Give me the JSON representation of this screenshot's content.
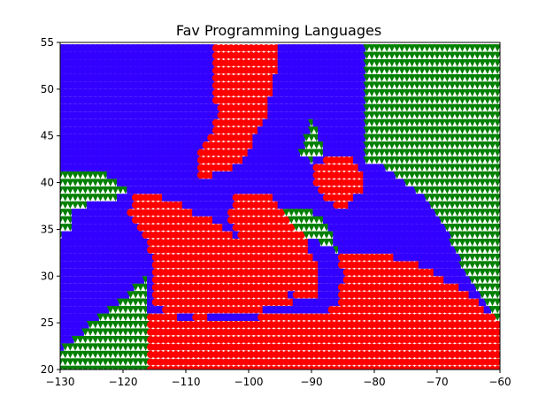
{
  "chart_data": {
    "type": "scatter",
    "title": "Fav Programming Languages",
    "xlabel": "",
    "ylabel": "",
    "xlim": [
      -130,
      -60
    ],
    "ylim": [
      20,
      55
    ],
    "xticks": [
      -130,
      -120,
      -110,
      -100,
      -90,
      -80,
      -70,
      -60
    ],
    "yticks": [
      20,
      25,
      30,
      35,
      40,
      45,
      50,
      55
    ],
    "grid": false,
    "legend": "none",
    "grid_step": {
      "x": 0.8,
      "y": 0.8
    },
    "colors": {
      "red": "#ff0000",
      "blue": "#3300ff",
      "green": "#008000"
    },
    "markers": {
      "red": "circle",
      "blue": "square",
      "green": "triangle-down"
    },
    "series": [
      {
        "color": "red",
        "regions": [
          {
            "comment": "northern central strip",
            "polygon": [
              [
                -105.5,
                55
              ],
              [
                -95,
                55
              ],
              [
                -95,
                53
              ],
              [
                -96,
                50
              ],
              [
                -97,
                47
              ],
              [
                -99,
                45
              ],
              [
                -100,
                43
              ],
              [
                -101,
                42
              ],
              [
                -103,
                41.5
              ],
              [
                -108,
                40
              ],
              [
                -108,
                43
              ],
              [
                -106,
                45
              ],
              [
                -105,
                47
              ],
              [
                -105.5,
                50
              ]
            ]
          },
          {
            "comment": "central western block",
            "polygon": [
              [
                -118,
                39
              ],
              [
                -114,
                38.5
              ],
              [
                -110,
                37.5
              ],
              [
                -108,
                36.5
              ],
              [
                -106,
                36
              ],
              [
                -104,
                35
              ],
              [
                -101,
                34
              ],
              [
                -98,
                33.5
              ],
              [
                -96,
                31
              ],
              [
                -94,
                28
              ],
              [
                -93,
                27
              ],
              [
                -100,
                26
              ],
              [
                -108,
                25.5
              ],
              [
                -113,
                26
              ],
              [
                -115,
                27
              ],
              [
                -115,
                31
              ],
              [
                -116,
                33
              ],
              [
                -117,
                35
              ],
              [
                -119,
                36.5
              ]
            ]
          },
          {
            "comment": "inland mid cluster",
            "polygon": [
              [
                -102,
                39
              ],
              [
                -96,
                39
              ],
              [
                -95,
                37
              ],
              [
                -93,
                35.5
              ],
              [
                -91,
                34
              ],
              [
                -89,
                31.5
              ],
              [
                -89,
                28
              ],
              [
                -93,
                28
              ],
              [
                -96,
                30
              ],
              [
                -99,
                32
              ],
              [
                -101,
                34
              ],
              [
                -103,
                35.5
              ],
              [
                -103,
                37
              ]
            ]
          },
          {
            "comment": "eastern middle cluster",
            "polygon": [
              [
                -90,
                42
              ],
              [
                -84,
                43
              ],
              [
                -82,
                41.5
              ],
              [
                -82,
                39
              ],
              [
                -85,
                37
              ],
              [
                -88,
                38
              ],
              [
                -90,
                40
              ]
            ]
          },
          {
            "comment": "south east",
            "polygon": [
              [
                -86,
                32.5
              ],
              [
                -79,
                32.5
              ],
              [
                -72,
                31
              ],
              [
                -67,
                29
              ],
              [
                -63,
                27
              ],
              [
                -60,
                25
              ],
              [
                -60,
                20
              ],
              [
                -116,
                20
              ],
              [
                -116,
                26
              ],
              [
                -110,
                25.5
              ],
              [
                -100,
                25.5
              ],
              [
                -92,
                26
              ],
              [
                -88,
                26
              ],
              [
                -86,
                27
              ],
              [
                -85,
                30
              ]
            ]
          }
        ]
      },
      {
        "color": "blue",
        "regions": [
          {
            "comment": "northern band",
            "polygon": [
              [
                -130,
                55
              ],
              [
                -105.5,
                55
              ],
              [
                -105.5,
                50
              ],
              [
                -105,
                47
              ],
              [
                -106,
                45
              ],
              [
                -108,
                43
              ],
              [
                -110,
                42
              ],
              [
                -122,
                41.5
              ],
              [
                -130,
                41.5
              ]
            ]
          },
          {
            "comment": "north central",
            "polygon": [
              [
                -95,
                55
              ],
              [
                -81.5,
                55
              ],
              [
                -81.5,
                42
              ],
              [
                -85,
                43
              ],
              [
                -88,
                44
              ],
              [
                -90,
                47
              ],
              [
                -91,
                50
              ],
              [
                -92,
                53
              ]
            ]
          },
          {
            "comment": "central",
            "polygon": [
              [
                -108,
                43
              ],
              [
                -100,
                43
              ],
              [
                -97,
                42
              ],
              [
                -94,
                41
              ],
              [
                -92,
                39
              ],
              [
                -90,
                37
              ],
              [
                -88,
                36
              ],
              [
                -87,
                35
              ],
              [
                -86,
                33
              ],
              [
                -84,
                32
              ],
              [
                -80,
                31
              ],
              [
                -75,
                31
              ],
              [
                -72,
                29.5
              ],
              [
                -68,
                29
              ],
              [
                -66,
                30
              ],
              [
                -69,
                33
              ],
              [
                -72,
                36
              ],
              [
                -76,
                38
              ],
              [
                -80,
                40
              ],
              [
                -82,
                41
              ],
              [
                -86,
                40
              ],
              [
                -90,
                38
              ],
              [
                -95,
                37
              ],
              [
                -100,
                38
              ],
              [
                -104,
                39
              ],
              [
                -110,
                40
              ],
              [
                -114,
                38.5
              ]
            ]
          },
          {
            "comment": "western coast",
            "polygon": [
              [
                -130,
                33
              ],
              [
                -124,
                33
              ],
              [
                -121,
                34
              ],
              [
                -119,
                35
              ],
              [
                -117,
                36
              ],
              [
                -116,
                33
              ],
              [
                -115,
                31
              ],
              [
                -118,
                29
              ],
              [
                -121,
                27
              ],
              [
                -125,
                25
              ],
              [
                -128,
                23
              ],
              [
                -130,
                22
              ]
            ]
          },
          {
            "comment": "western inner",
            "polygon": [
              [
                -128,
                37
              ],
              [
                -124,
                38
              ],
              [
                -121,
                38
              ],
              [
                -119,
                37
              ],
              [
                -118,
                35
              ],
              [
                -116,
                34
              ],
              [
                -116,
                32
              ],
              [
                -120,
                31
              ],
              [
                -124,
                31
              ],
              [
                -127,
                33
              ]
            ]
          }
        ]
      },
      {
        "color": "green",
        "regions": [
          {
            "comment": "north east",
            "polygon": [
              [
                -81.5,
                55
              ],
              [
                -60,
                55
              ],
              [
                -60,
                25
              ],
              [
                -62,
                27
              ],
              [
                -64,
                29
              ],
              [
                -66,
                31
              ],
              [
                -68,
                34
              ],
              [
                -70,
                36.5
              ],
              [
                -72,
                38.5
              ],
              [
                -75,
                40
              ],
              [
                -78,
                41.5
              ],
              [
                -81.5,
                42
              ]
            ]
          },
          {
            "comment": "west coast",
            "polygon": [
              [
                -130,
                41.5
              ],
              [
                -124,
                41.5
              ],
              [
                -121,
                40
              ],
              [
                -119,
                39
              ],
              [
                -122,
                38
              ],
              [
                -126,
                37
              ],
              [
                -128,
                35
              ],
              [
                -130,
                34
              ]
            ]
          },
          {
            "comment": "south west",
            "polygon": [
              [
                -130,
                30
              ],
              [
                -123,
                30
              ],
              [
                -121,
                31
              ],
              [
                -119,
                32
              ],
              [
                -117,
                33
              ],
              [
                -116,
                30
              ],
              [
                -116,
                20
              ],
              [
                -130,
                20
              ]
            ]
          },
          {
            "comment": "central north finger",
            "polygon": [
              [
                -91,
                45
              ],
              [
                -87,
                53
              ],
              [
                -86,
                50
              ],
              [
                -87,
                45
              ],
              [
                -88,
                43
              ],
              [
                -90,
                42
              ],
              [
                -92,
                43
              ]
            ]
          },
          {
            "comment": "mid south corridor",
            "polygon": [
              [
                -95,
                37
              ],
              [
                -87,
                38
              ],
              [
                -86,
                36
              ],
              [
                -83,
                34
              ],
              [
                -80,
                31
              ],
              [
                -84,
                31
              ],
              [
                -87,
                33
              ],
              [
                -90,
                34
              ],
              [
                -94,
                35
              ]
            ]
          }
        ]
      }
    ]
  }
}
